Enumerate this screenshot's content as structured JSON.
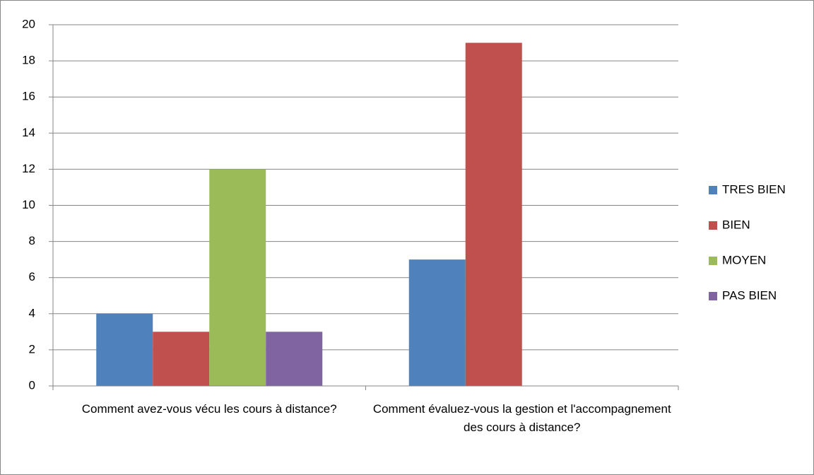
{
  "chart_data": {
    "type": "bar",
    "categories": [
      "Comment avez-vous vécu les cours à distance?",
      "Comment évaluez-vous la gestion et l'accompagnement des cours à distance?"
    ],
    "series": [
      {
        "name": "TRES BIEN",
        "color": "#4f81bd",
        "values": [
          4,
          7
        ]
      },
      {
        "name": "BIEN",
        "color": "#c0504d",
        "values": [
          3,
          19
        ]
      },
      {
        "name": "MOYEN",
        "color": "#9bbb59",
        "values": [
          12,
          null
        ]
      },
      {
        "name": "PAS BIEN",
        "color": "#8064a2",
        "values": [
          3,
          null
        ]
      }
    ],
    "ylim": [
      0,
      20
    ],
    "yticks": [
      0,
      2,
      4,
      6,
      8,
      10,
      12,
      14,
      16,
      18,
      20
    ],
    "grid": true,
    "legend": "right"
  }
}
